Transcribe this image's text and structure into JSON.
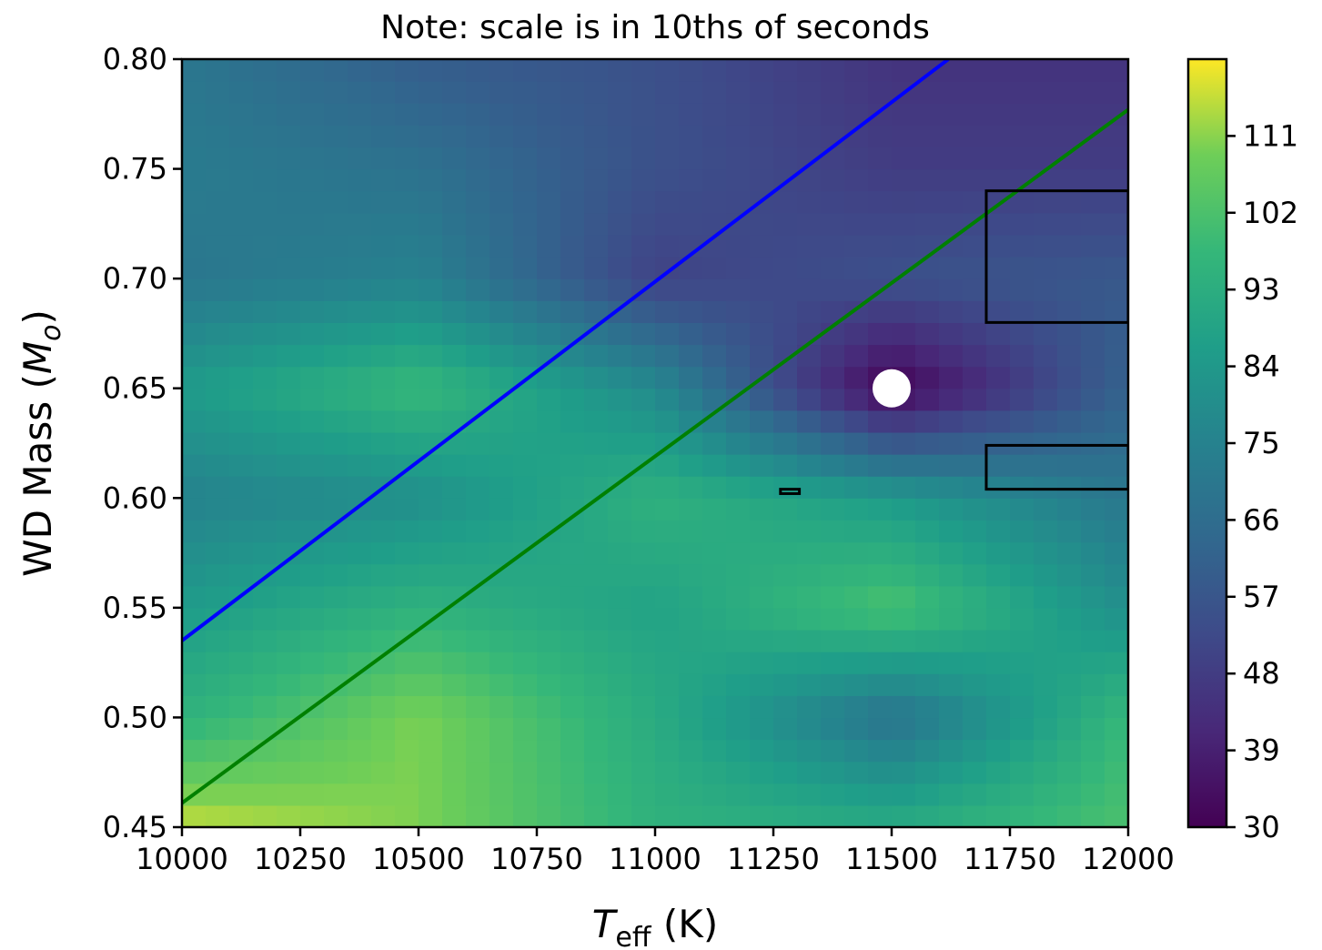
{
  "chart_data": {
    "type": "heatmap",
    "title": "Note: scale is in 10ths of seconds",
    "xlabel_main": "T",
    "xlabel_sub": "eff",
    "xlabel_unit": " (K)",
    "ylabel_main": "WD Mass (",
    "ylabel_sym": "M",
    "ylabel_sub": "o",
    "ylabel_end": ")",
    "xlim": [
      10000,
      12000
    ],
    "ylim": [
      0.45,
      0.8
    ],
    "xticks": [
      10000,
      10250,
      10500,
      10750,
      11000,
      11250,
      11500,
      11750,
      12000
    ],
    "xtick_labels": [
      "10000",
      "10250",
      "10500",
      "10750",
      "11000",
      "11250",
      "11500",
      "11750",
      "12000"
    ],
    "yticks": [
      0.45,
      0.5,
      0.55,
      0.6,
      0.65,
      0.7,
      0.75,
      0.8
    ],
    "ytick_labels": [
      "0.45",
      "0.50",
      "0.55",
      "0.60",
      "0.65",
      "0.70",
      "0.75",
      "0.80"
    ],
    "colorbar": {
      "range": [
        30,
        120
      ],
      "ticks": [
        30,
        39,
        48,
        57,
        66,
        75,
        84,
        93,
        102,
        111
      ],
      "tick_labels": [
        "30",
        "39",
        "48",
        "57",
        "66",
        "75",
        "84",
        "93",
        "102",
        "111"
      ],
      "colormap": "viridis"
    },
    "grid": {
      "x": [
        10000,
        10500,
        11000,
        11500,
        12000
      ],
      "y": [
        0.45,
        0.5,
        0.55,
        0.6,
        0.65,
        0.7,
        0.75,
        0.8
      ],
      "z": [
        [
          116,
          110,
          95,
          92,
          102
        ],
        [
          95,
          110,
          92,
          68,
          98
        ],
        [
          85,
          95,
          88,
          102,
          80
        ],
        [
          75,
          80,
          95,
          85,
          70
        ],
        [
          85,
          98,
          78,
          30,
          62
        ],
        [
          70,
          75,
          50,
          55,
          58
        ],
        [
          72,
          68,
          55,
          48,
          48
        ],
        [
          70,
          60,
          55,
          45,
          45
        ]
      ]
    },
    "lines": [
      {
        "color": "#0000ff",
        "x": [
          10000,
          11620
        ],
        "y": [
          0.535,
          0.8
        ]
      },
      {
        "color": "#008000",
        "x": [
          10000,
          12000
        ],
        "y": [
          0.461,
          0.777
        ]
      }
    ],
    "boxes": [
      {
        "x": [
          11700,
          12000
        ],
        "y": [
          0.68,
          0.74
        ]
      },
      {
        "x": [
          11700,
          12000
        ],
        "y": [
          0.604,
          0.624
        ]
      },
      {
        "x": [
          11265,
          11305
        ],
        "y": [
          0.602,
          0.604
        ]
      }
    ],
    "marker": {
      "x": 11500,
      "y": 0.65,
      "color": "#ffffff"
    }
  }
}
